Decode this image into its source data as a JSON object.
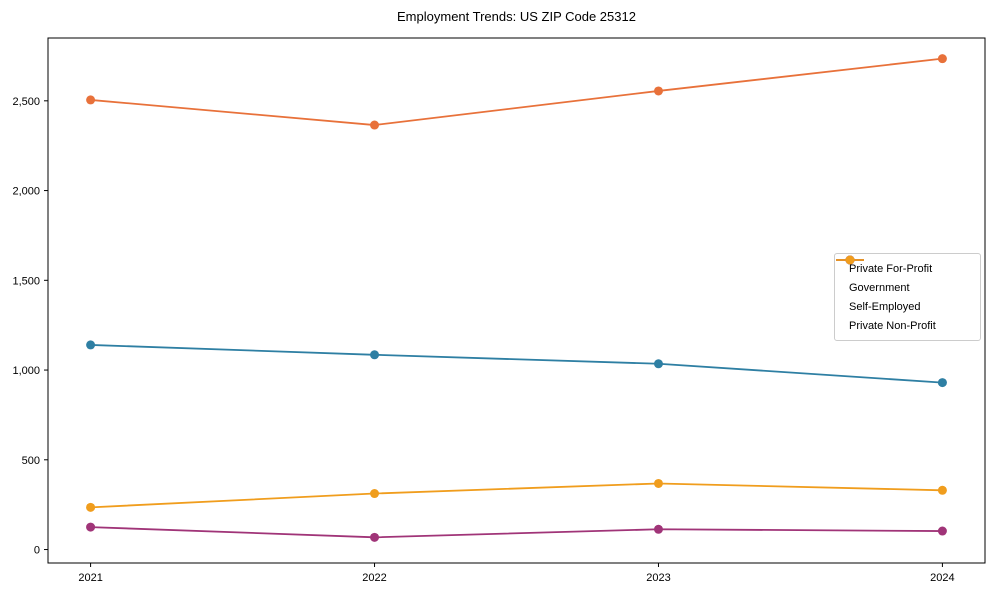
{
  "chart_data": {
    "type": "line",
    "title": "Employment Trends: US ZIP Code 25312",
    "xlabel": "",
    "ylabel": "",
    "x": [
      2021,
      2022,
      2023,
      2024
    ],
    "x_tick_labels": [
      "2021",
      "2022",
      "2023",
      "2024"
    ],
    "y_ticks": [
      0,
      500,
      1000,
      1500,
      2000,
      2500
    ],
    "y_tick_labels": [
      "0",
      "500",
      "1,000",
      "1,500",
      "2,000",
      "2,500"
    ],
    "xlim": [
      2020.85,
      2024.15
    ],
    "ylim": [
      -75,
      2850
    ],
    "grid": false,
    "legend_position": "center right",
    "series": [
      {
        "name": "Private For-Profit",
        "color": "#e8713a",
        "values": [
          2505,
          2365,
          2555,
          2735
        ]
      },
      {
        "name": "Government",
        "color": "#2e7fa3",
        "values": [
          1140,
          1085,
          1035,
          930
        ]
      },
      {
        "name": "Self-Employed",
        "color": "#a03478",
        "values": [
          125,
          68,
          113,
          103
        ]
      },
      {
        "name": "Private Non-Profit",
        "color": "#f09d1d",
        "values": [
          235,
          312,
          368,
          330
        ]
      }
    ]
  }
}
